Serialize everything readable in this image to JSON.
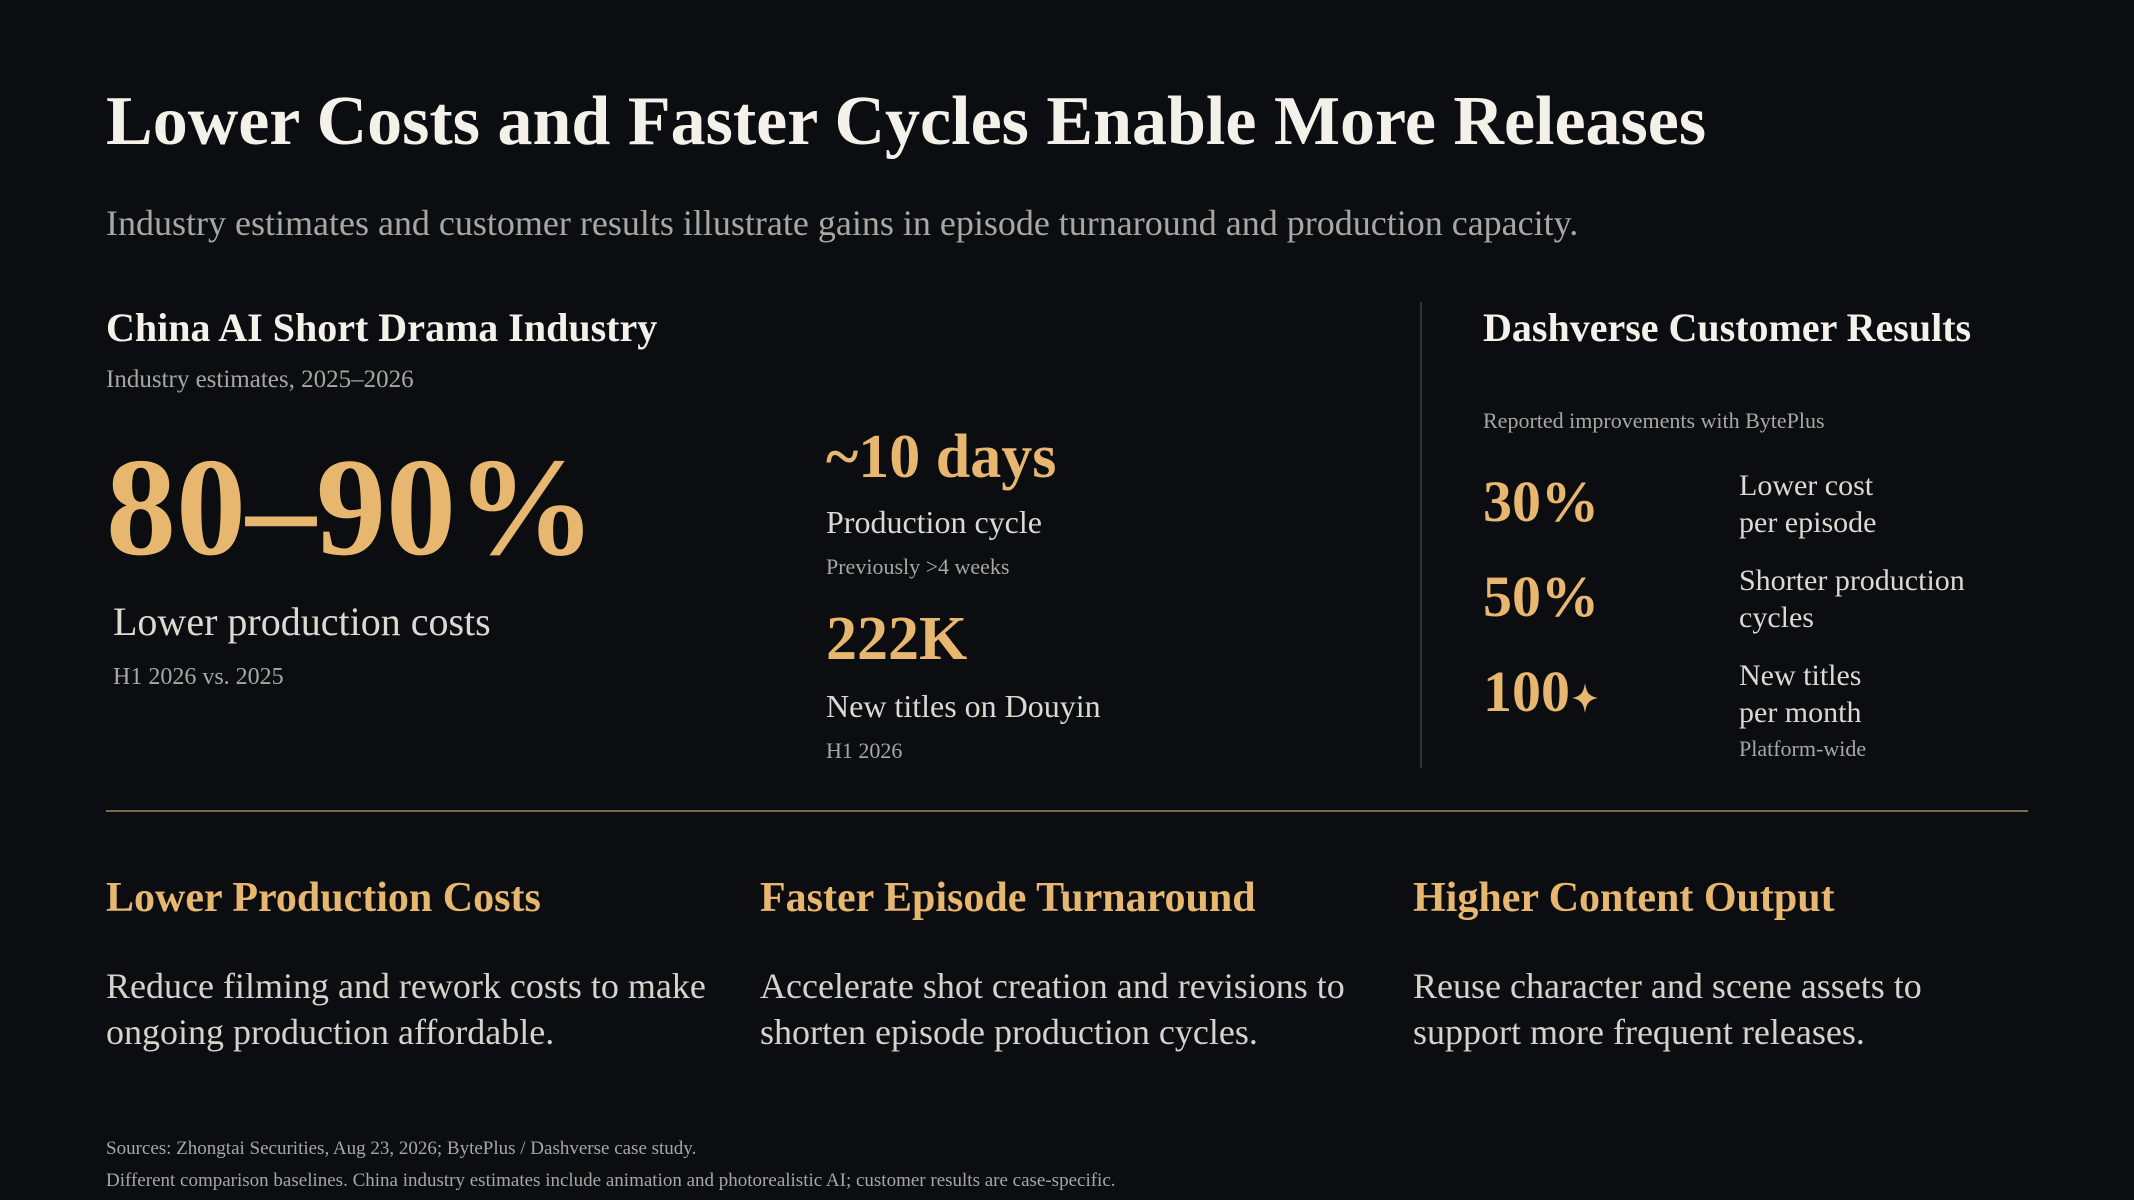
{
  "header": {
    "title": "Lower Costs and Faster Cycles Enable More Releases",
    "subtitle": "Industry estimates and customer results illustrate gains in episode turnaround and production capacity."
  },
  "industry": {
    "heading": "China AI Short Drama Industry",
    "note": "Industry estimates, 2025–2026",
    "cost_value": "80–90%",
    "cost_label": "Lower production costs",
    "cost_note": "H1 2026 vs. 2025",
    "cycle_value": "~10 days",
    "cycle_label": "Production cycle",
    "cycle_note": "Previously >4 weeks",
    "titles_value": "222K",
    "titles_label": "New titles on Douyin",
    "titles_note": "H1 2026"
  },
  "customer": {
    "heading": "Dashverse Customer Results",
    "note": "Reported improvements with BytePlus",
    "metrics": [
      {
        "value": "30%",
        "label_line1": "Lower cost",
        "label_line2": "per episode"
      },
      {
        "value": "50%",
        "label_line1": "Shorter production",
        "label_line2": "cycles"
      },
      {
        "value": "100",
        "label_line1": "New titles",
        "label_line2": "per month",
        "note": "Platform-wide",
        "icon": "sparkle-icon"
      }
    ]
  },
  "pillars": [
    {
      "title": "Lower Production Costs",
      "text": "Reduce filming and rework costs to make ongoing production affordable."
    },
    {
      "title": "Faster Episode Turnaround",
      "text": "Accelerate shot creation and revisions to shorten episode production cycles."
    },
    {
      "title": "Higher Content Output",
      "text": "Reuse character and scene assets to support more frequent releases."
    }
  ],
  "footer": {
    "line1": "Sources: Zhongtai Securities, Aug 23, 2026; BytePlus / Dashverse case study.",
    "line2": "Different comparison baselines. China industry estimates include animation and photorealistic AI; customer results are case-specific."
  },
  "colors": {
    "background": "#0b0d11",
    "accent_gold": "#e7b76f",
    "text": "#f4f1ea",
    "muted": "#a9a7a2"
  }
}
